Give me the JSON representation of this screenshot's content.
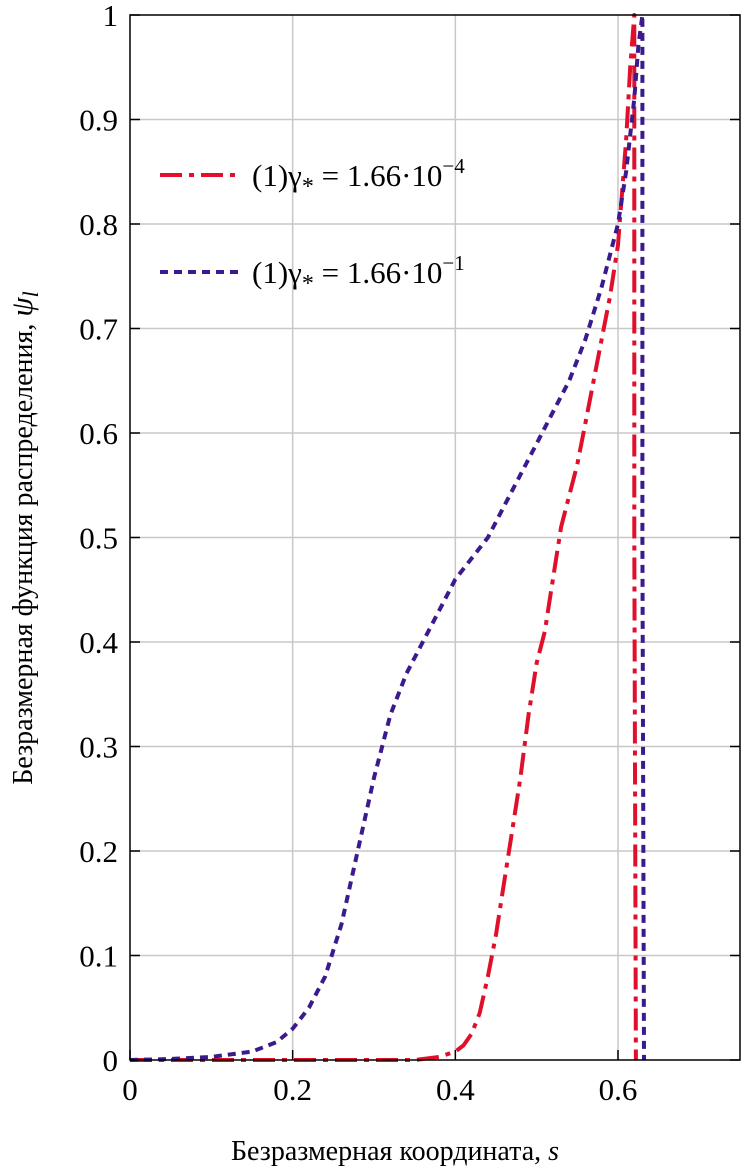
{
  "chart_data": {
    "type": "line",
    "xlabel": "Безразмерная координата,",
    "xlabel_var": "s",
    "ylabel": "Безразмерная функция распределения,",
    "ylabel_var": "ψ",
    "ylabel_var_sub": "l",
    "xlim": [
      0,
      0.75
    ],
    "ylim": [
      0,
      1
    ],
    "x_ticks": [
      0,
      0.2,
      0.4,
      0.6
    ],
    "x_tick_labels": [
      "0",
      "0.2",
      "0.4",
      "0.6"
    ],
    "y_ticks": [
      0,
      0.1,
      0.2,
      0.3,
      0.4,
      0.5,
      0.6,
      0.7,
      0.8,
      0.9,
      1
    ],
    "y_tick_labels": [
      "0",
      "0.1",
      "0.2",
      "0.3",
      "0.4",
      "0.5",
      "0.6",
      "0.7",
      "0.8",
      "0.9",
      "1"
    ],
    "grid": true,
    "legend_position": "top-left",
    "series": [
      {
        "name": "(1)γ* = 1.66·10−4",
        "legend": {
          "prefix": "(1)γ",
          "sub": "*",
          "middle": " = 1.66·10",
          "sup": "−4"
        },
        "color": "#e0102c",
        "dash": "dash-dot",
        "x": [
          0,
          0.1,
          0.2,
          0.3,
          0.35,
          0.38,
          0.4,
          0.41,
          0.42,
          0.43,
          0.44,
          0.45,
          0.46,
          0.47,
          0.48,
          0.49,
          0.5,
          0.51,
          0.52,
          0.53,
          0.54,
          0.55,
          0.56,
          0.57,
          0.58,
          0.59,
          0.6,
          0.61,
          0.615,
          0.62,
          0.62,
          0.622
        ],
        "y": [
          0,
          0,
          0,
          0,
          0,
          0.003,
          0.008,
          0.014,
          0.025,
          0.045,
          0.08,
          0.12,
          0.17,
          0.22,
          0.27,
          0.33,
          0.38,
          0.41,
          0.46,
          0.51,
          0.54,
          0.57,
          0.61,
          0.65,
          0.69,
          0.73,
          0.78,
          0.88,
          0.95,
          1.0,
          0.5,
          0
        ]
      },
      {
        "name": "(1)γ* = 1.66·10−1",
        "legend": {
          "prefix": "(1)γ",
          "sub": "*",
          "middle": " = 1.66·10",
          "sup": "−1"
        },
        "color": "#3a1a8c",
        "dash": "dashed",
        "x": [
          0,
          0.05,
          0.1,
          0.15,
          0.18,
          0.2,
          0.22,
          0.24,
          0.26,
          0.28,
          0.3,
          0.32,
          0.34,
          0.36,
          0.38,
          0.4,
          0.42,
          0.44,
          0.46,
          0.48,
          0.5,
          0.52,
          0.54,
          0.56,
          0.58,
          0.6,
          0.61,
          0.62,
          0.625,
          0.63,
          0.63,
          0.632
        ],
        "y": [
          0,
          0.001,
          0.003,
          0.008,
          0.017,
          0.03,
          0.05,
          0.08,
          0.13,
          0.2,
          0.27,
          0.33,
          0.37,
          0.4,
          0.43,
          0.46,
          0.48,
          0.5,
          0.53,
          0.56,
          0.59,
          0.62,
          0.65,
          0.69,
          0.74,
          0.8,
          0.85,
          0.92,
          0.97,
          1.0,
          0.5,
          0
        ]
      }
    ]
  }
}
